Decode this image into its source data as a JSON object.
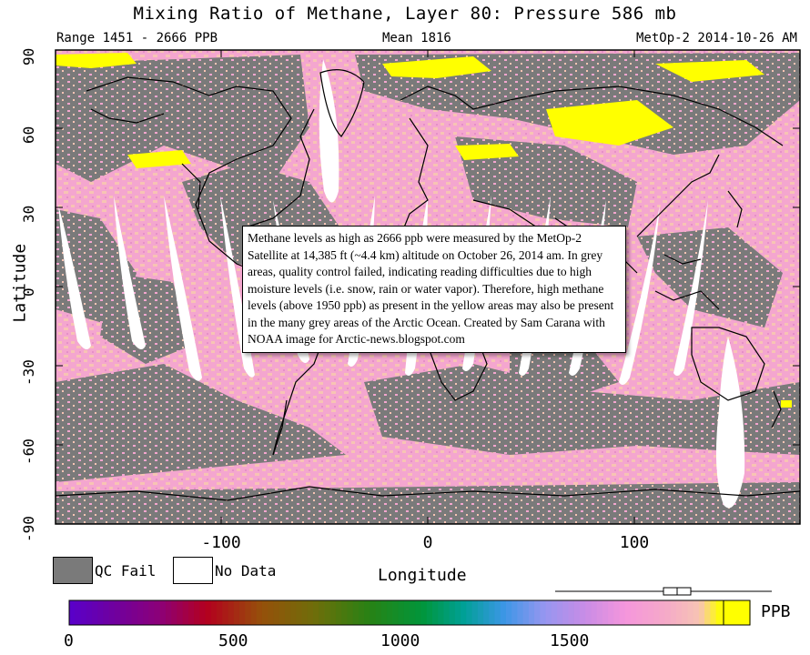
{
  "header": {
    "title": "Mixing Ratio of Methane, Layer 80: Pressure 586 mb",
    "range": "Range 1451 - 2666 PPB",
    "mean": "Mean 1816",
    "satellite_date": "MetOp-2 2014-10-26 AM"
  },
  "axes": {
    "xlabel": "Longitude",
    "ylabel": "Latitude",
    "x_ticks": [
      "-100",
      "0",
      "100"
    ],
    "y_ticks": [
      "90",
      "60",
      "30",
      "0",
      "-30",
      "-60",
      "-90"
    ],
    "x_range": [
      -180,
      180
    ],
    "y_range": [
      -90,
      90
    ]
  },
  "legend": {
    "qc_fail": "QC Fail",
    "no_data": "No Data",
    "qc_fail_color": "#7a7a7a",
    "no_data_color": "#ffffff"
  },
  "colorbar": {
    "labels": [
      "0",
      "500",
      "1000",
      "1500"
    ],
    "unit": "PPB",
    "range": [
      0,
      2666
    ],
    "mean_marker": 1816
  },
  "annotation": {
    "text": "Methane levels as high as 2666 ppb were measured by the MetOp-2 Satellite at 14,385 ft (~4.4 km) altitude on October 26, 2014 am. In grey areas, quality control failed, indicating reading difficulties due to high moisture levels (i.e. snow, rain or water vapor). Therefore, high methane levels (above 1950 ppb) as present in the yellow areas may also be present in the many grey areas of the Arctic Ocean.  Created by Sam Carana with NOAA image for Arctic-news.blogspot.com"
  },
  "colors": {
    "pink": "#f4a6cf",
    "peach": "#f7c4b4",
    "grey": "#7a7a7a",
    "yellow": "#ffff00"
  }
}
